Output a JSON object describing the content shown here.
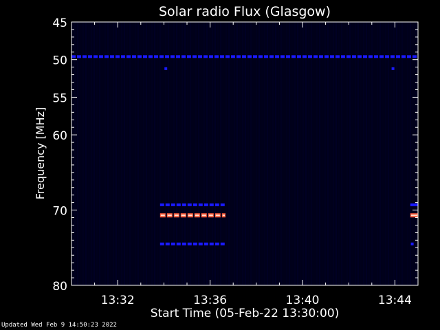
{
  "chart_data": {
    "type": "heatmap",
    "title": "Solar radio Flux (Glasgow)",
    "xlabel": "Start Time (05-Feb-22 13:30:00)",
    "ylabel": "Frequency [MHz]",
    "x_unit": "minutes",
    "xlim": [
      "13:30:00",
      "13:45:00"
    ],
    "ylim": [
      45,
      80
    ],
    "y_reversed": true,
    "x_ticks": [
      "13:32",
      "13:36",
      "13:40",
      "13:44"
    ],
    "y_ticks": [
      45,
      50,
      55,
      60,
      70,
      80
    ],
    "grid": false,
    "background_color": "#00001a",
    "bands": [
      {
        "freq": 49.6,
        "start": "13:30:00",
        "end": "13:45:00",
        "level": "low",
        "dotted": true
      },
      {
        "freq": 69.3,
        "start": "13:33:50",
        "end": "13:36:40",
        "level": "low",
        "dotted": true
      },
      {
        "freq": 70.7,
        "start": "13:33:50",
        "end": "13:36:40",
        "level": "high",
        "dotted": true
      },
      {
        "freq": 74.5,
        "start": "13:33:50",
        "end": "13:36:40",
        "level": "low",
        "dotted": true
      },
      {
        "freq": 69.3,
        "start": "13:44:40",
        "end": "13:45:00",
        "level": "low",
        "dotted": false
      },
      {
        "freq": 70.7,
        "start": "13:44:40",
        "end": "13:45:00",
        "level": "high",
        "dotted": false
      }
    ],
    "spots": [
      {
        "freq": 51.2,
        "time": "13:34:05",
        "level": "low"
      },
      {
        "freq": 51.2,
        "time": "13:43:55",
        "level": "low"
      },
      {
        "freq": 74.5,
        "time": "13:44:45",
        "level": "low"
      }
    ],
    "colors": {
      "low": "#1a1aff",
      "high": "#ff5a3a",
      "high_core": "#ffe0d0"
    }
  },
  "footer": "Updated Wed Feb  9 14:50:23 2022"
}
